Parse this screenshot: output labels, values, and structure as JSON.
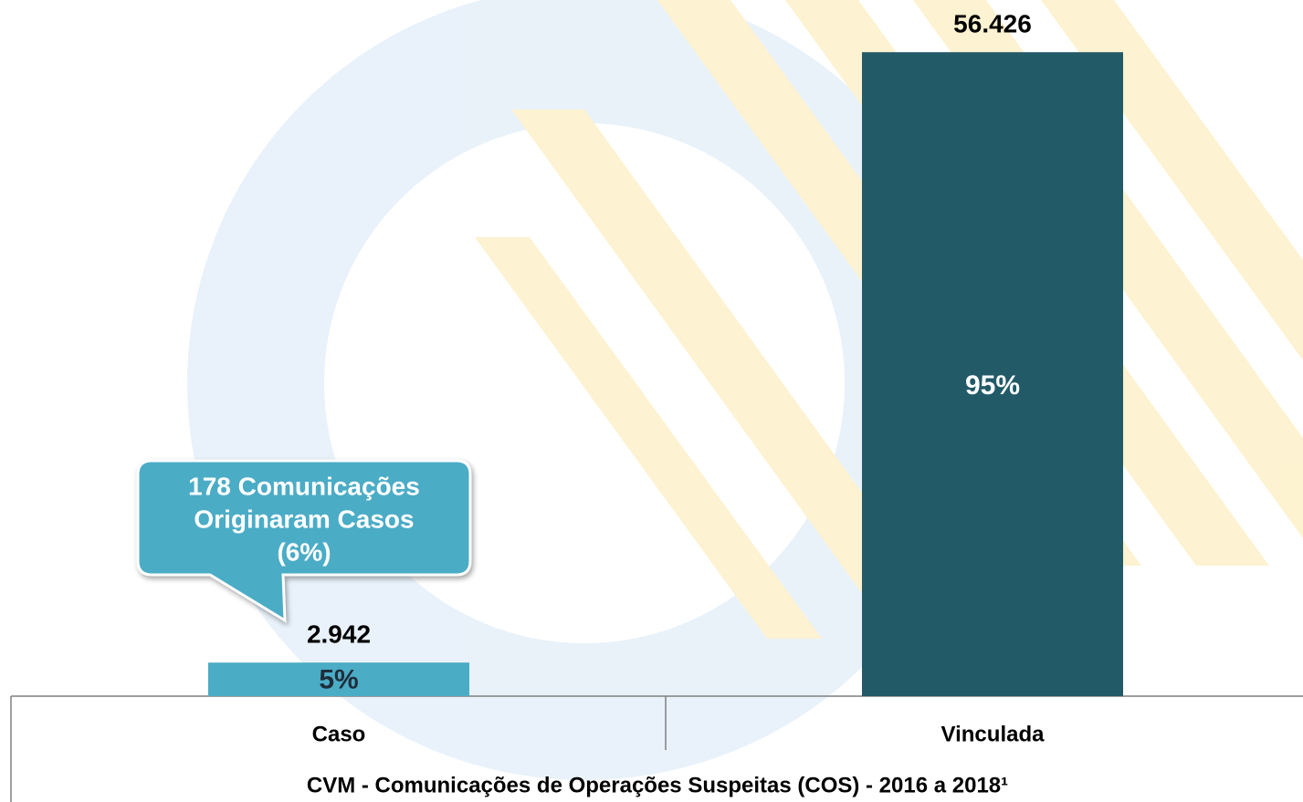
{
  "chart_data": {
    "type": "bar",
    "title": "CVM - Comunicações de Operações Suspeitas (COS) - 2016 a 2018¹",
    "categories": [
      "Caso",
      "Vinculada"
    ],
    "values": [
      2942,
      56426
    ],
    "value_labels": [
      "2.942",
      "56.426"
    ],
    "share_labels": [
      "5%",
      "95%"
    ],
    "colors": [
      "#4bacc6",
      "#225a68"
    ],
    "ylim": [
      0,
      60000
    ],
    "annotation": {
      "lines": [
        "178 Comunicações",
        "Originaram Casos",
        "(6%)"
      ],
      "category": 0
    }
  }
}
